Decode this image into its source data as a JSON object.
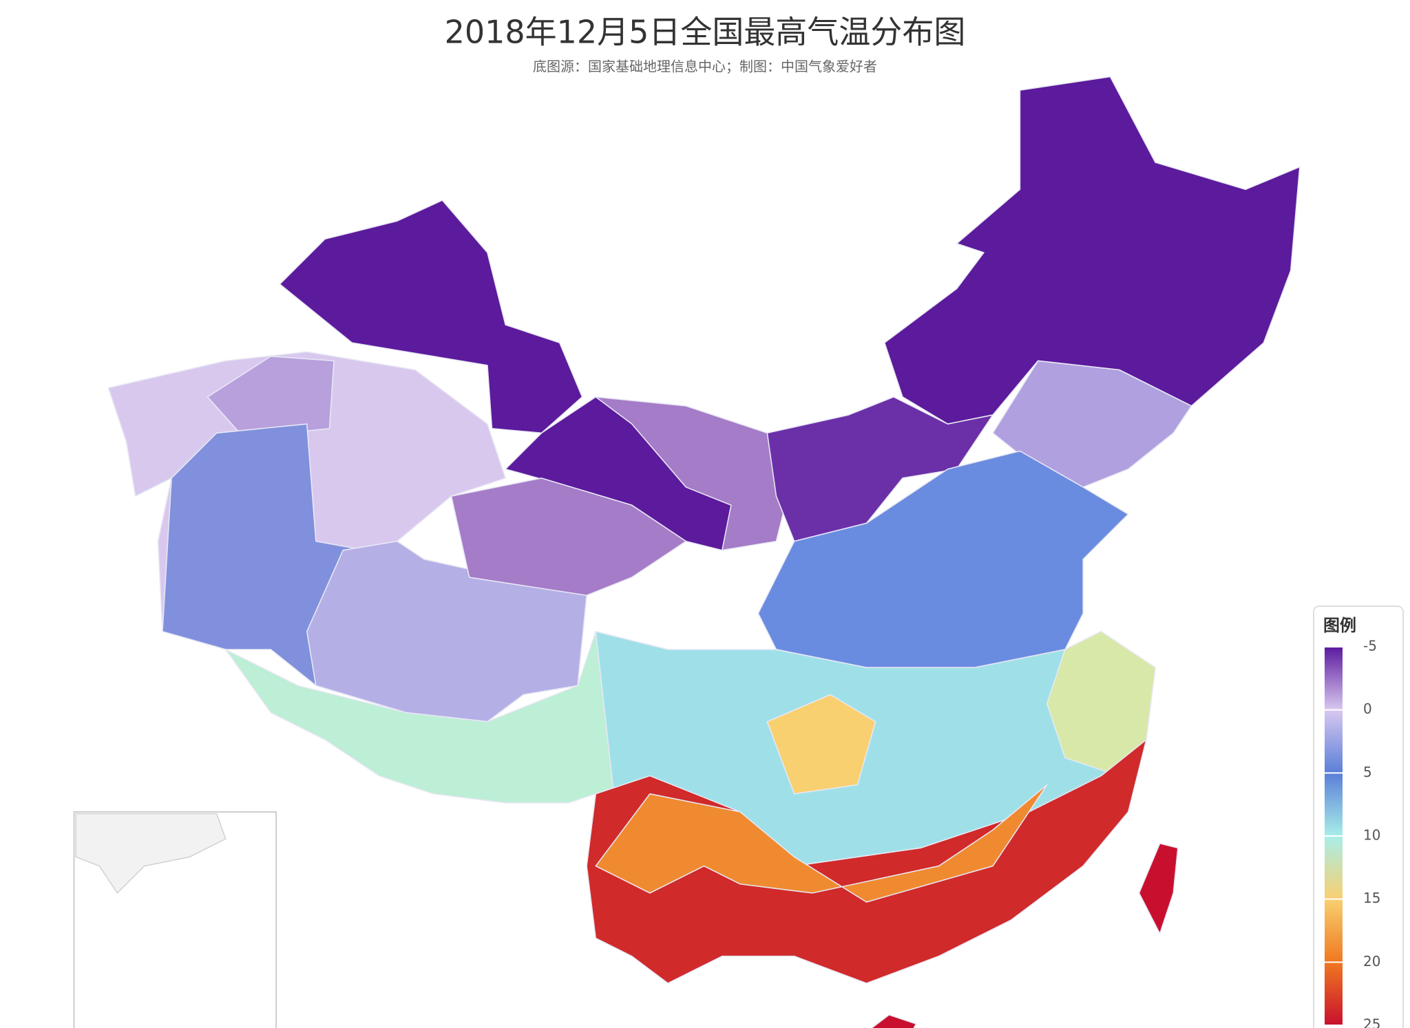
{
  "title": "2018年12月5日全国最高气温分布图",
  "subtitle": "底图源：国家基础地理信息中心；制图：中国气象爱好者",
  "legend": {
    "title": "图例",
    "ticks": [
      -5,
      0,
      5,
      10,
      15,
      20,
      25
    ],
    "colors": [
      "#5b1a9e",
      "#d8c8f0",
      "#5a7fd8",
      "#a8eee8",
      "#f8d070",
      "#f07820",
      "#c8102e"
    ]
  }
}
